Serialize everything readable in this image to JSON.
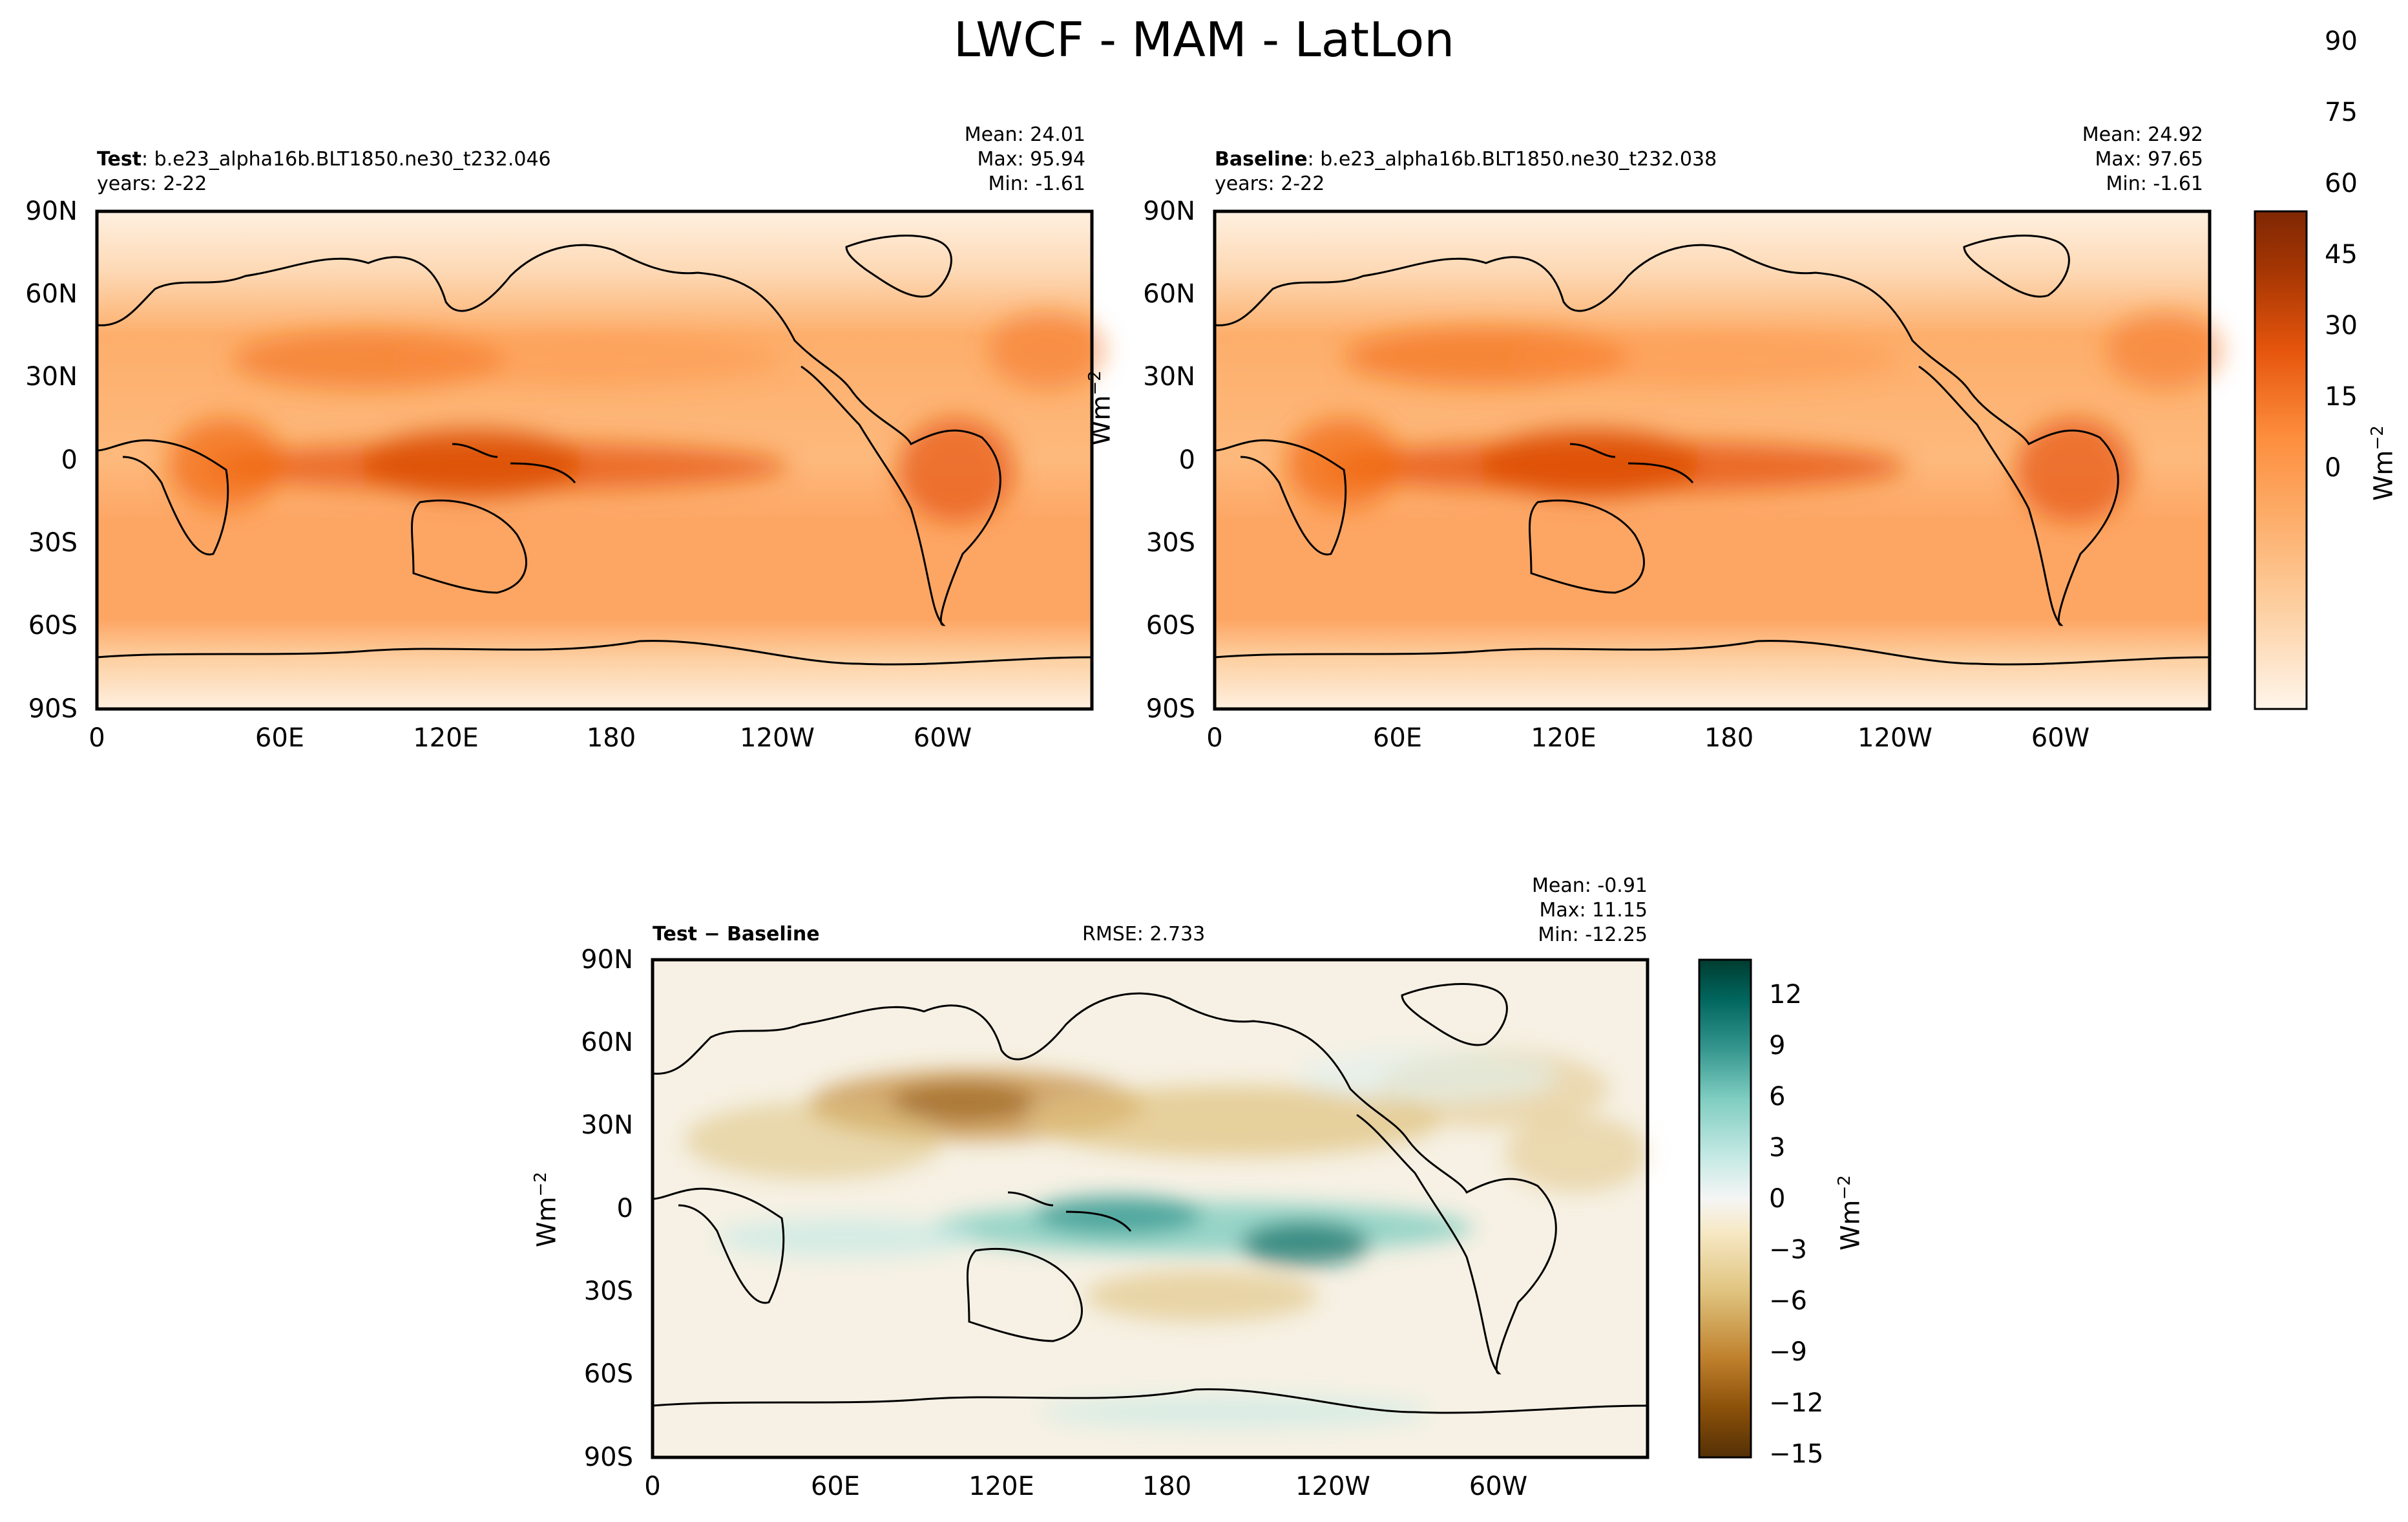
{
  "title": "LWCF - MAM - LatLon",
  "unit_label": "Wm",
  "unit_exp": "−2",
  "panels": [
    {
      "id": "test",
      "name_bold": "Test",
      "name_rest": ": b.e23_alpha16b.BLT1850.ne30_t232.046",
      "years": "years: 2-22",
      "mean": "Mean: 24.01",
      "max": "Max: 95.94",
      "min": "Min: -1.61"
    },
    {
      "id": "baseline",
      "name_bold": "Baseline",
      "name_rest": ": b.e23_alpha16b.BLT1850.ne30_t232.038",
      "years": "years: 2-22",
      "mean": "Mean: 24.92",
      "max": "Max: 97.65",
      "min": "Min: -1.61"
    },
    {
      "id": "diff",
      "name_bold": "Test − Baseline",
      "rmse": "RMSE: 2.733",
      "mean": "Mean: -0.91",
      "max": "Max: 11.15",
      "min": "Min: -12.25"
    }
  ],
  "chart_data": {
    "type": "heatmap",
    "projection": "PlateCarree, central longitude 180",
    "x_ticks": [
      "0",
      "60E",
      "120E",
      "180",
      "120W",
      "60W"
    ],
    "y_ticks": [
      "90N",
      "60N",
      "30N",
      "0",
      "30S",
      "60S",
      "90S"
    ],
    "xlim": [
      0,
      360
    ],
    "ylim": [
      -90,
      90
    ],
    "colorbar_main": {
      "colormap": "Oranges",
      "colors": [
        "#fff5eb",
        "#fdd0a2",
        "#fdae6b",
        "#fd8d3c",
        "#e6550d",
        "#a63603",
        "#7f2704"
      ],
      "range": [
        -10,
        95
      ],
      "ticks": [
        "0",
        "15",
        "30",
        "45",
        "60",
        "75",
        "90"
      ]
    },
    "colorbar_diff": {
      "colormap": "BrBG",
      "colors": [
        "#543005",
        "#8c510a",
        "#bf812d",
        "#dfc27d",
        "#f6e8c3",
        "#f5f5f5",
        "#c7eae5",
        "#80cdc1",
        "#35978f",
        "#01665e",
        "#003c30"
      ],
      "range": [
        -15,
        14
      ],
      "ticks": [
        "12",
        "9",
        "6",
        "3",
        "0",
        "−3",
        "−6",
        "−9",
        "−12",
        "−15"
      ]
    }
  }
}
